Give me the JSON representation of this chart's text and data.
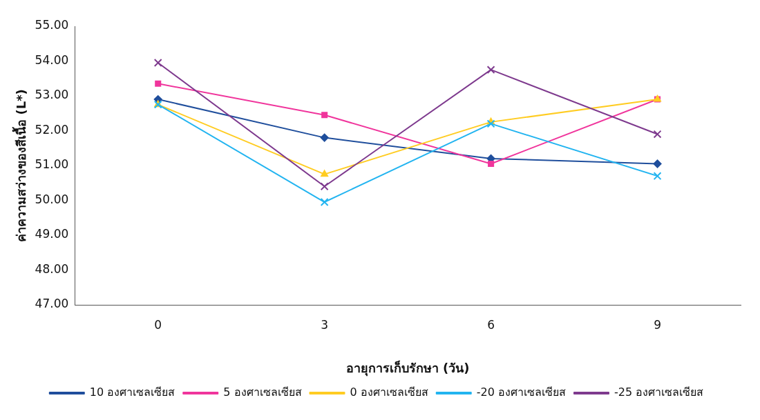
{
  "chart_data": {
    "type": "line",
    "xlabel": "อายุการเก็บรักษา (วัน)",
    "ylabel": "ค่าความสว่างของสีเนื้อ (L*)",
    "categories": [
      "0",
      "3",
      "6",
      "9"
    ],
    "ylim": [
      47,
      55
    ],
    "yticks": [
      {
        "value": 47,
        "label": "47.00"
      },
      {
        "value": 48,
        "label": "48.00"
      },
      {
        "value": 49,
        "label": "49.00"
      },
      {
        "value": 50,
        "label": "50.00"
      },
      {
        "value": 51,
        "label": "51.00"
      },
      {
        "value": 52,
        "label": "52.00"
      },
      {
        "value": 53,
        "label": "53.00"
      },
      {
        "value": 54,
        "label": "54.00"
      },
      {
        "value": 55,
        "label": "55.00"
      }
    ],
    "grid": false,
    "legend": "bottom",
    "series": [
      {
        "name": "10 องศาเซลเซียส",
        "color": "#1f4e9c",
        "marker": "diamond",
        "values": [
          52.9,
          51.8,
          51.2,
          51.05
        ]
      },
      {
        "name": "5 องศาเซลเซียส",
        "color": "#f0359c",
        "marker": "square",
        "values": [
          53.35,
          52.45,
          51.05,
          52.9
        ]
      },
      {
        "name": "0 องศาเซลเซียส",
        "color": "#ffcc22",
        "marker": "triangle",
        "values": [
          52.75,
          50.75,
          52.25,
          52.9
        ]
      },
      {
        "name": "-20 องศาเซลเซียส",
        "color": "#22b4f0",
        "marker": "cross",
        "values": [
          52.75,
          49.95,
          52.2,
          50.7
        ]
      },
      {
        "name": "-25 องศาเซลเซียส",
        "color": "#7e3a8e",
        "marker": "cross",
        "values": [
          53.95,
          50.4,
          53.75,
          51.9
        ]
      }
    ]
  }
}
